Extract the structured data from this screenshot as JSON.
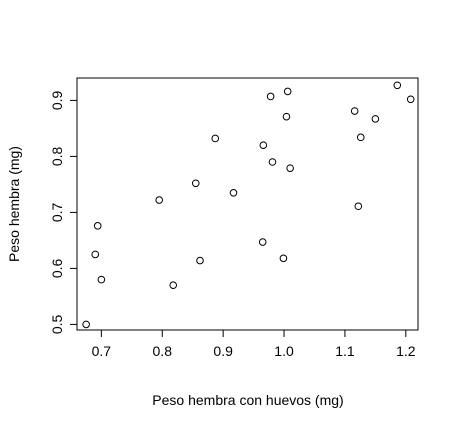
{
  "chart_data": {
    "type": "scatter",
    "xlabel": "Peso hembra con huevos (mg)",
    "ylabel": "Peso hembra (mg)",
    "xlim": [
      0.66,
      1.22
    ],
    "ylim": [
      0.49,
      0.94
    ],
    "x_ticks": [
      0.7,
      0.8,
      0.9,
      1.0,
      1.1,
      1.2
    ],
    "x_tick_labels": [
      "0.7",
      "0.8",
      "0.9",
      "1.0",
      "1.1",
      "1.2"
    ],
    "y_ticks": [
      0.5,
      0.6,
      0.7,
      0.8,
      0.9
    ],
    "y_tick_labels": [
      "0.5",
      "0.6",
      "0.7",
      "0.8",
      "0.9"
    ],
    "grid": false,
    "legend": "none",
    "marker": "open-circle",
    "points": [
      {
        "x": 0.675,
        "y": 0.5
      },
      {
        "x": 0.69,
        "y": 0.625
      },
      {
        "x": 0.694,
        "y": 0.676
      },
      {
        "x": 0.7,
        "y": 0.58
      },
      {
        "x": 0.795,
        "y": 0.722
      },
      {
        "x": 0.818,
        "y": 0.57
      },
      {
        "x": 0.855,
        "y": 0.752
      },
      {
        "x": 0.862,
        "y": 0.614
      },
      {
        "x": 0.887,
        "y": 0.832
      },
      {
        "x": 0.917,
        "y": 0.735
      },
      {
        "x": 0.965,
        "y": 0.647
      },
      {
        "x": 0.966,
        "y": 0.82
      },
      {
        "x": 0.978,
        "y": 0.907
      },
      {
        "x": 0.981,
        "y": 0.79
      },
      {
        "x": 0.999,
        "y": 0.618
      },
      {
        "x": 1.004,
        "y": 0.871
      },
      {
        "x": 1.006,
        "y": 0.916
      },
      {
        "x": 1.01,
        "y": 0.779
      },
      {
        "x": 1.116,
        "y": 0.881
      },
      {
        "x": 1.122,
        "y": 0.711
      },
      {
        "x": 1.126,
        "y": 0.834
      },
      {
        "x": 1.15,
        "y": 0.867
      },
      {
        "x": 1.186,
        "y": 0.927
      },
      {
        "x": 1.208,
        "y": 0.902
      }
    ]
  }
}
